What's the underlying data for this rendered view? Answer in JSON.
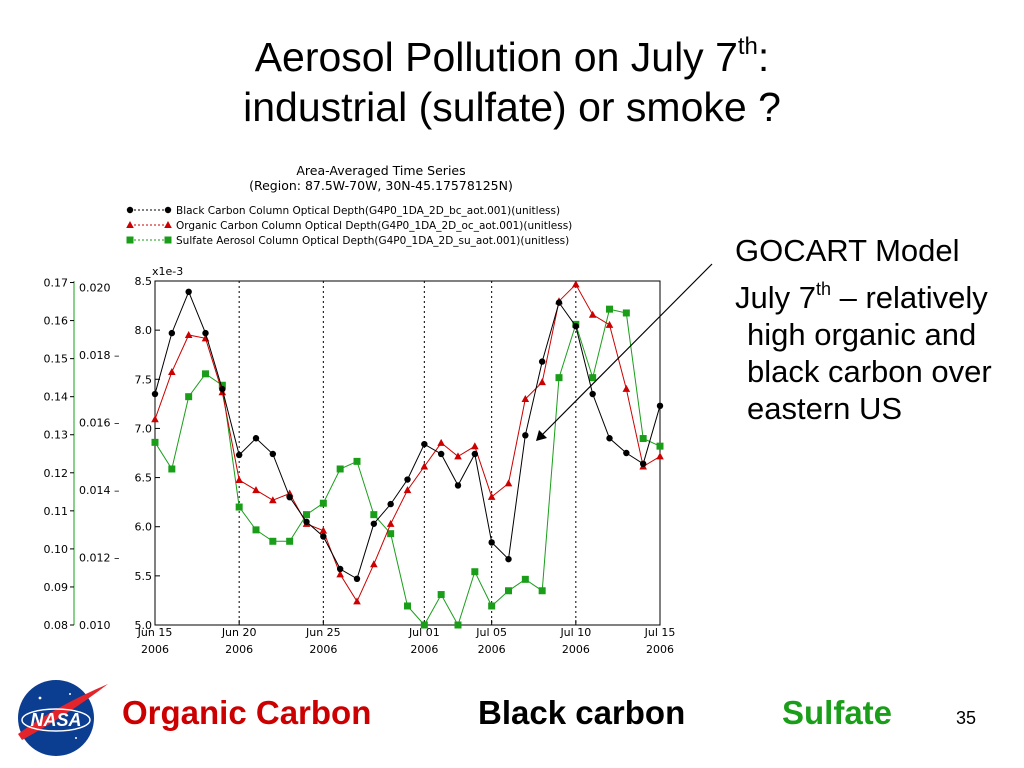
{
  "slide": {
    "title_line1_pre": "Aerosol Pollution on July 7",
    "title_line1_sup": "th",
    "title_line1_post": ":",
    "title_line2": "industrial (sulfate) or smoke ?",
    "side_p1": "GOCART Model",
    "side_p2_pre": "July 7",
    "side_p2_sup": "th",
    "side_p2_post": " – relatively high organic and black carbon over eastern US",
    "footer_organic": "Organic Carbon",
    "footer_black": "Black carbon",
    "footer_sulfate": "Sulfate",
    "page_number": "35",
    "logo_text": "NASA",
    "colors": {
      "organic": "#cc0000",
      "black": "#000000",
      "sulfate": "#1a9e1a"
    }
  },
  "chart_data": {
    "type": "line",
    "title": "Area-Averaged Time Series",
    "subtitle": "(Region: 87.5W-70W, 30N-45.17578125N)",
    "x_tick_labels": [
      {
        "day": 0,
        "line1": "Jun 15",
        "line2": "2006"
      },
      {
        "day": 5,
        "line1": "Jun 20",
        "line2": "2006"
      },
      {
        "day": 10,
        "line1": "Jun 25",
        "line2": "2006"
      },
      {
        "day": 16,
        "line1": "Jul 01",
        "line2": "2006"
      },
      {
        "day": 20,
        "line1": "Jul 05",
        "line2": "2006"
      },
      {
        "day": 25,
        "line1": "Jul 10",
        "line2": "2006"
      },
      {
        "day": 30,
        "line1": "Jul 15",
        "line2": "2006"
      }
    ],
    "vlines": [
      5,
      10,
      16,
      20,
      25
    ],
    "x_range": [
      0,
      30
    ],
    "axes": [
      {
        "id": "sulfate",
        "ticks": [
          0.08,
          0.09,
          0.1,
          0.11,
          0.12,
          0.13,
          0.14,
          0.15,
          0.16,
          0.17
        ],
        "labels": [
          "0.08",
          "0.09",
          "0.10",
          "0.11",
          "0.12",
          "0.13",
          "0.14",
          "0.15",
          "0.16",
          "0.17"
        ],
        "ylim": [
          0.08,
          0.1704
        ]
      },
      {
        "id": "organic",
        "ticks": [
          0.01,
          0.012,
          0.014,
          0.016,
          0.018,
          0.02
        ],
        "labels": [
          "0.010",
          "0.012 –",
          "0.014 –",
          "0.016 –",
          "0.018 –",
          "0.020"
        ],
        "ylim": [
          0.01,
          0.0202
        ]
      },
      {
        "id": "black",
        "multiplier": "x1e-3",
        "ticks": [
          5.0,
          5.5,
          6.0,
          6.5,
          7.0,
          7.5,
          8.0,
          8.5
        ],
        "labels": [
          "5.0",
          "5.5",
          "6.0",
          "6.5",
          "7.0",
          "7.5",
          "8.0",
          "8.5"
        ],
        "ylim": [
          5.0,
          8.5
        ]
      }
    ],
    "series": [
      {
        "name": "Black Carbon Column Optical Depth(G4P0_1DA_2D_bc_aot.001)(unitless)",
        "color": "#000000",
        "marker": "circle",
        "axis": "black",
        "x": [
          0,
          1,
          2,
          3,
          4,
          5,
          6,
          7,
          8,
          9,
          10,
          11,
          12,
          13,
          14,
          15,
          16,
          17,
          18,
          19,
          20,
          21,
          22,
          23,
          24,
          25,
          26,
          27,
          28,
          29,
          30
        ],
        "values": [
          7.35,
          7.97,
          8.39,
          7.97,
          7.4,
          6.73,
          6.9,
          6.74,
          6.3,
          6.05,
          5.9,
          5.57,
          5.47,
          6.03,
          6.23,
          6.48,
          6.84,
          6.74,
          6.42,
          6.74,
          5.84,
          5.67,
          6.93,
          7.68,
          8.28,
          8.04,
          7.35,
          6.9,
          6.75,
          6.64,
          7.23
        ]
      },
      {
        "name": "Organic Carbon Column Optical Depth(G4P0_1DA_2D_oc_aot.001)(unitless)",
        "color": "#cc0000",
        "marker": "triangle",
        "axis": "organic",
        "x": [
          0,
          1,
          2,
          3,
          4,
          5,
          6,
          7,
          8,
          9,
          10,
          11,
          12,
          13,
          14,
          15,
          16,
          17,
          18,
          19,
          20,
          21,
          22,
          23,
          24,
          25,
          26,
          27,
          28,
          29,
          30
        ],
        "values": [
          0.0161,
          0.0175,
          0.0186,
          0.0185,
          0.0169,
          0.0143,
          0.014,
          0.0137,
          0.0139,
          0.013,
          0.0128,
          0.0115,
          0.0107,
          0.0118,
          0.013,
          0.014,
          0.0147,
          0.0154,
          0.015,
          0.0153,
          0.0138,
          0.0142,
          0.0167,
          0.0172,
          0.0196,
          0.0201,
          0.0192,
          0.0189,
          0.017,
          0.0147,
          0.015
        ]
      },
      {
        "name": "Sulfate Aerosol Column Optical Depth(G4P0_1DA_2D_su_aot.001)(unitless)",
        "color": "#1a9e1a",
        "marker": "square",
        "axis": "sulfate",
        "x": [
          0,
          1,
          2,
          3,
          4,
          5,
          6,
          7,
          8,
          9,
          10,
          11,
          12,
          13,
          14,
          15,
          16,
          17,
          18,
          19,
          20,
          21,
          22,
          23,
          24,
          25,
          26,
          27,
          28,
          29,
          30
        ],
        "values": [
          0.128,
          0.121,
          0.14,
          0.146,
          0.143,
          0.111,
          0.105,
          0.102,
          0.102,
          0.109,
          0.112,
          0.121,
          0.123,
          0.109,
          0.104,
          0.085,
          0.08,
          0.088,
          0.08,
          0.094,
          0.085,
          0.089,
          0.092,
          0.089,
          0.145,
          0.159,
          0.145,
          0.163,
          0.162,
          0.129,
          0.127
        ]
      }
    ],
    "grid": false,
    "legend_position": "top-left"
  }
}
